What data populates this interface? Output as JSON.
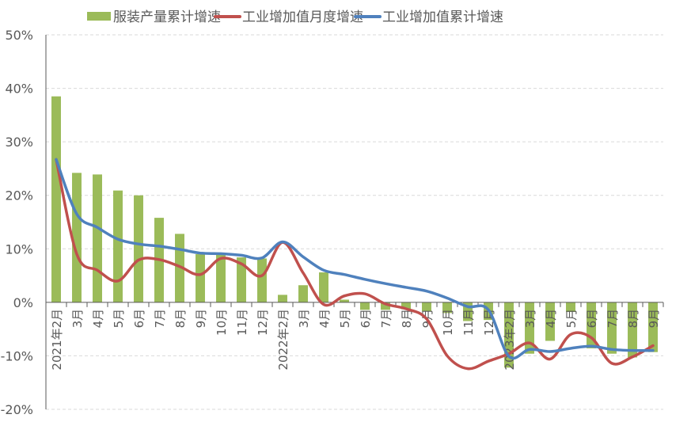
{
  "chart_data": {
    "type": "bar+line",
    "title": "",
    "xlabel": "",
    "ylabel": "",
    "ylim": [
      -20,
      50
    ],
    "y_ticks": [
      -20,
      -10,
      0,
      10,
      20,
      30,
      40,
      50
    ],
    "y_tick_format": "%",
    "grid": "horizontal dashed",
    "legend_position": "top",
    "categories": [
      "2021年2月",
      "3月",
      "4月",
      "5月",
      "6月",
      "7月",
      "8月",
      "9月",
      "10月",
      "11月",
      "12月",
      "2022年2月",
      "3月",
      "4月",
      "5月",
      "6月",
      "7月",
      "8月",
      "9月",
      "10月",
      "11月",
      "12月",
      "2023年2月",
      "3月",
      "4月",
      "5月",
      "6月",
      "7月",
      "8月",
      "9月"
    ],
    "series": [
      {
        "name": "服装产量累计增速",
        "kind": "bar",
        "color": "#9BBB59",
        "values": [
          38.5,
          24.2,
          23.9,
          20.9,
          20.0,
          15.8,
          12.8,
          9.0,
          8.9,
          8.4,
          8.2,
          1.4,
          3.2,
          5.6,
          0.5,
          -1.4,
          -1.4,
          -1.3,
          -1.7,
          -2.0,
          -3.5,
          -3.3,
          -12.2,
          -9.6,
          -7.2,
          -1.8,
          -8.6,
          -9.6,
          -10.3,
          -9.3
        ]
      },
      {
        "name": "工业增加值月度增速",
        "kind": "line",
        "color": "#C0504D",
        "values": [
          26.7,
          9.0,
          6.0,
          4.0,
          7.9,
          8.0,
          6.7,
          5.2,
          8.2,
          7.2,
          5.0,
          11.2,
          5.5,
          -0.4,
          1.2,
          1.6,
          -0.3,
          -1.2,
          -3.1,
          -10.0,
          -12.4,
          -11.0,
          -9.6,
          -7.6,
          -10.6,
          -6.0,
          -6.6,
          -11.4,
          -10.2,
          -8.1
        ]
      },
      {
        "name": "工业增加值累计增速",
        "kind": "line",
        "color": "#4F81BD",
        "values": [
          26.7,
          16.5,
          14.0,
          11.8,
          10.9,
          10.5,
          9.9,
          9.2,
          9.1,
          8.8,
          8.3,
          11.3,
          8.5,
          6.0,
          5.2,
          4.3,
          3.5,
          2.8,
          2.1,
          0.8,
          -0.8,
          -1.4,
          -10.1,
          -8.8,
          -9.2,
          -8.6,
          -8.2,
          -8.8,
          -9.0,
          -9.0
        ]
      }
    ]
  }
}
